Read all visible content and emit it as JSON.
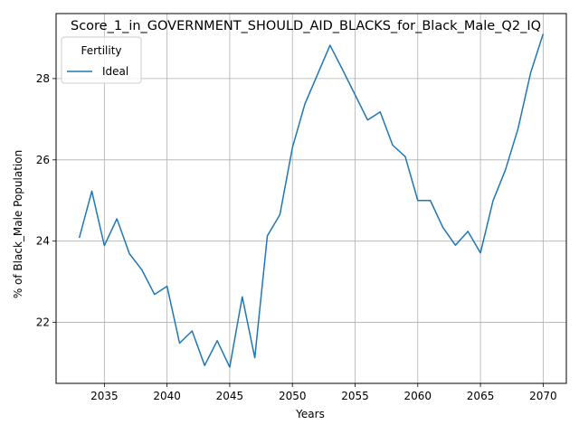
{
  "chart_data": {
    "type": "line",
    "title": "Score_1_in_GOVERNMENT_SHOULD_AID_BLACKS_for_Black_Male_Q2_IQ",
    "xlabel": "Years",
    "ylabel": "% of Black_Male Population",
    "xlim": [
      2031.15,
      2071.85
    ],
    "ylim": [
      20.5,
      29.6
    ],
    "xticks": [
      2035,
      2040,
      2045,
      2050,
      2055,
      2060,
      2065,
      2070
    ],
    "yticks": [
      22,
      24,
      26,
      28
    ],
    "grid": true,
    "legend": {
      "title": "Fertility",
      "position": "top-left"
    },
    "series": [
      {
        "name": "Ideal",
        "color": "#1f77b4",
        "x": [
          2033,
          2034,
          2035,
          2036,
          2037,
          2038,
          2039,
          2040,
          2041,
          2042,
          2043,
          2044,
          2045,
          2046,
          2047,
          2048,
          2049,
          2050,
          2051,
          2052,
          2053,
          2054,
          2055,
          2056,
          2057,
          2058,
          2059,
          2060,
          2061,
          2062,
          2063,
          2064,
          2065,
          2066,
          2067,
          2068,
          2069,
          2070
        ],
        "y": [
          24.08,
          25.23,
          23.89,
          24.55,
          23.69,
          23.29,
          22.69,
          22.89,
          21.49,
          21.79,
          20.94,
          21.55,
          20.9,
          22.63,
          21.13,
          24.13,
          24.65,
          26.3,
          27.38,
          28.1,
          28.82,
          28.22,
          27.6,
          26.98,
          27.18,
          26.36,
          26.08,
          25.0,
          25.0,
          24.34,
          23.9,
          24.24,
          23.71,
          24.99,
          25.76,
          26.77,
          28.14,
          29.1
        ]
      }
    ]
  }
}
